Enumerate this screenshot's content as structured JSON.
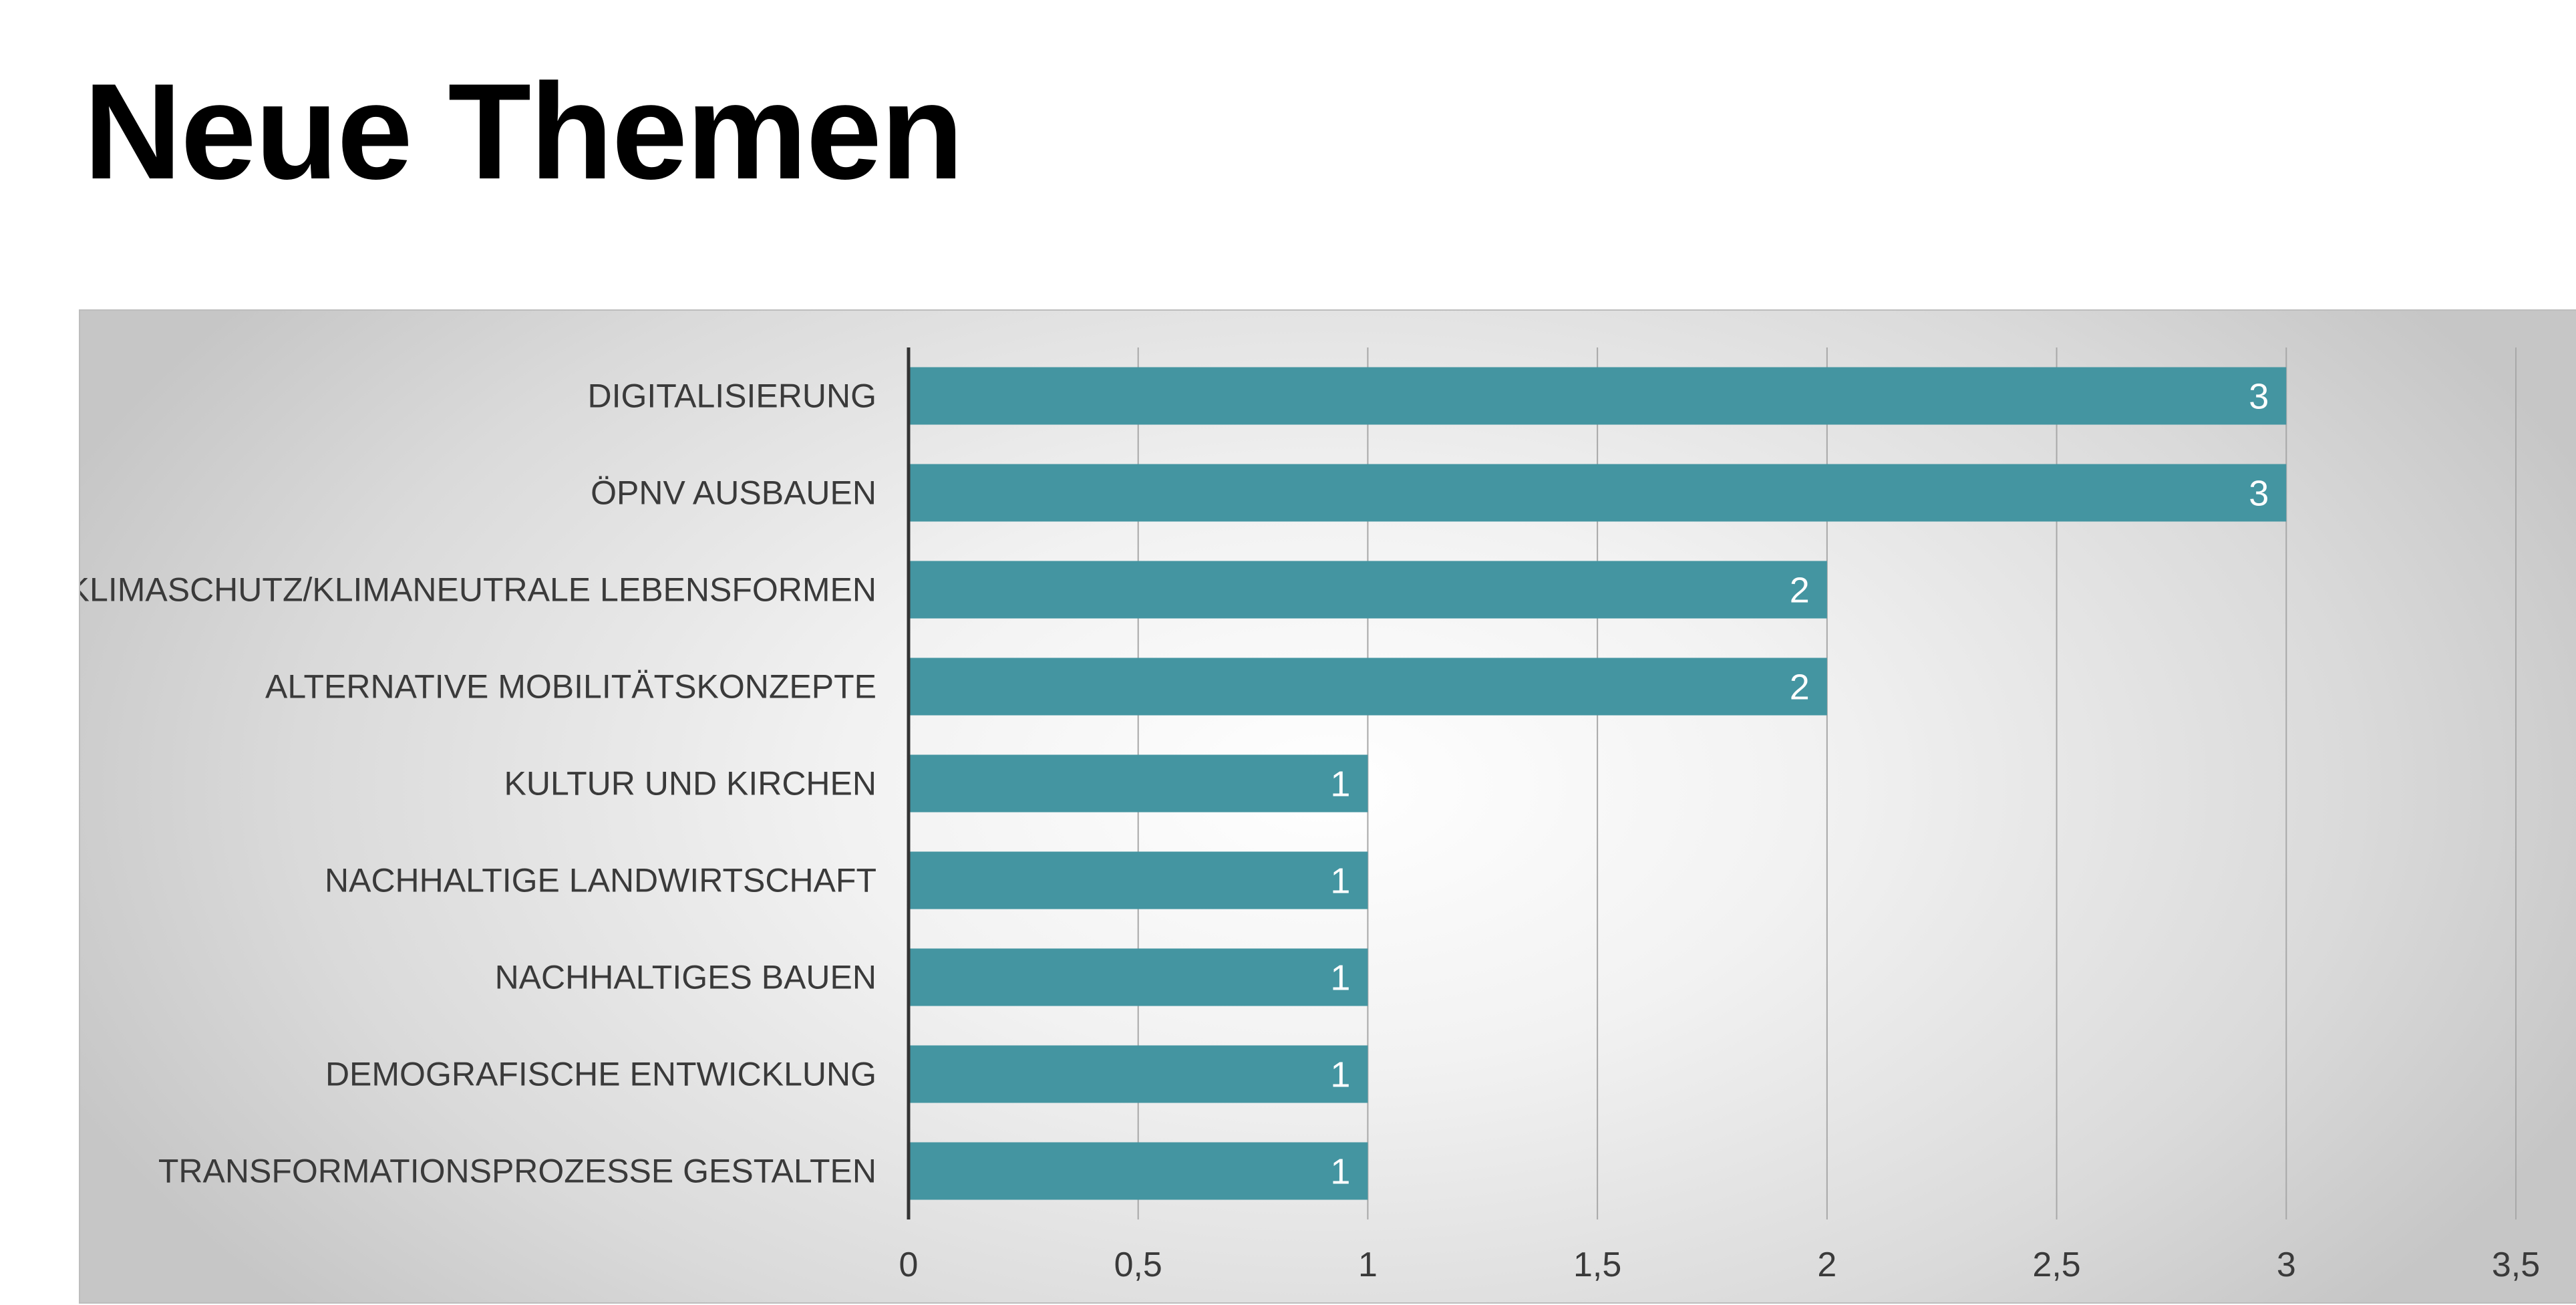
{
  "page": {
    "title": "Neue Themen"
  },
  "chart_data": {
    "type": "bar",
    "orientation": "horizontal",
    "title": "",
    "xlabel": "",
    "ylabel": "",
    "categories": [
      "DIGITALISIERUNG",
      "ÖPNV AUSBAUEN",
      "KLIMASCHUTZ/KLIMANEUTRALE LEBENSFORMEN",
      "ALTERNATIVE MOBILITÄTSKONZEPTE",
      "KULTUR UND KIRCHEN",
      "NACHHALTIGE LANDWIRTSCHAFT",
      "NACHHALTIGES BAUEN",
      "DEMOGRAFISCHE ENTWICKLUNG",
      "TRANSFORMATIONSPROZESSE GESTALTEN"
    ],
    "values": [
      3,
      3,
      2,
      2,
      1,
      1,
      1,
      1,
      1
    ],
    "xlim": [
      0,
      3.5
    ],
    "x_ticks": [
      0,
      0.5,
      1,
      1.5,
      2,
      2.5,
      3,
      3.5
    ],
    "x_tick_labels": [
      "0",
      "0,5",
      "1",
      "1,5",
      "2",
      "2,5",
      "3",
      "3,5"
    ],
    "data_labels": [
      "3",
      "3",
      "2",
      "2",
      "1",
      "1",
      "1",
      "1",
      "1"
    ],
    "grid": "vertical",
    "legend": "none",
    "bar_color": "#4495a1"
  }
}
